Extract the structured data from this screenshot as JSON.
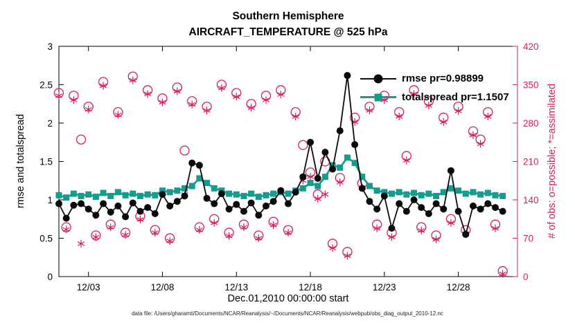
{
  "figure": {
    "title_line1": "Southern Hemisphere",
    "title_line2": "AIRCRAFT_TEMPERATURE @ 525 hPa",
    "footer": "data file: /Users/gharamti/Documents/NCAR/Reanalysis/~/Documents/NCAR/Reanalysis/webpub/obs_diag_output_2010-12.nc"
  },
  "colors": {
    "rmse": "#0a0a0a",
    "totalspread": "#169c8f",
    "obs": "#d81b60",
    "axis": "#000000"
  },
  "chart_data": {
    "type": "line",
    "title": [
      "Southern Hemisphere",
      "AIRCRAFT_TEMPERATURE @ 525 hPa"
    ],
    "xlabel": "Dec.01,2010 00:00:00 start",
    "ylabel_left": "rmse and totalspread",
    "ylabel_right": "# of obs: o=possible; *=assimilated",
    "xlim_days": [
      1,
      32
    ],
    "ylim_left": [
      0,
      3
    ],
    "ylim_right": [
      0,
      420
    ],
    "grid": false,
    "legend_position": "upper-right-inside",
    "xticks": {
      "days": [
        3,
        8,
        13,
        18,
        23,
        28
      ],
      "labels": [
        "12/03",
        "12/08",
        "12/13",
        "12/18",
        "12/23",
        "12/28"
      ]
    },
    "yticks_left": [
      0,
      0.5,
      1,
      1.5,
      2,
      2.5,
      3
    ],
    "yticks_left_labels": [
      "0",
      "0.5",
      "1",
      "1.5",
      "2",
      "2.5",
      "3"
    ],
    "yticks_right": [
      0,
      70,
      140,
      210,
      280,
      350,
      420
    ],
    "legend": [
      {
        "label": "rmse pr=0.98899",
        "series": "rmse"
      },
      {
        "label": "totalspread pr=1.1507",
        "series": "totalspread"
      }
    ],
    "x_days": [
      1,
      1.5,
      2,
      2.5,
      3,
      3.5,
      4,
      4.5,
      5,
      5.5,
      6,
      6.5,
      7,
      7.5,
      8,
      8.5,
      9,
      9.5,
      10,
      10.5,
      11,
      11.5,
      12,
      12.5,
      13,
      13.5,
      14,
      14.5,
      15,
      15.5,
      16,
      16.5,
      17,
      17.5,
      18,
      18.5,
      19,
      19.5,
      20,
      20.5,
      21,
      21.5,
      22,
      22.5,
      23,
      23.5,
      24,
      24.5,
      25,
      25.5,
      26,
      26.5,
      27,
      27.5,
      28,
      28.5,
      29,
      29.5,
      30,
      30.5,
      31
    ],
    "series": [
      {
        "name": "rmse",
        "axis": "left",
        "marker": "filled-circle",
        "values": [
          0.95,
          0.76,
          0.93,
          0.95,
          0.88,
          0.8,
          0.95,
          0.84,
          0.92,
          0.78,
          0.96,
          0.85,
          0.9,
          0.82,
          1.07,
          0.92,
          0.98,
          1.05,
          1.48,
          1.45,
          1.02,
          0.95,
          1.08,
          0.88,
          0.94,
          0.85,
          0.96,
          0.8,
          0.92,
          0.98,
          1.12,
          0.95,
          1.1,
          1.3,
          1.75,
          1.28,
          1.62,
          1.4,
          1.9,
          2.62,
          1.72,
          1.15,
          0.98,
          0.88,
          1.05,
          0.63,
          0.95,
          0.85,
          1.0,
          0.9,
          0.82,
          0.95,
          0.88,
          1.38,
          0.85,
          0.55,
          0.92,
          0.88,
          0.95,
          0.9,
          0.85
        ]
      },
      {
        "name": "totalspread",
        "axis": "left",
        "marker": "filled-square",
        "values": [
          1.06,
          1.03,
          1.08,
          1.05,
          1.07,
          1.04,
          1.09,
          1.05,
          1.1,
          1.06,
          1.08,
          1.05,
          1.07,
          1.06,
          1.12,
          1.1,
          1.12,
          1.15,
          1.18,
          1.28,
          1.22,
          1.15,
          1.12,
          1.08,
          1.07,
          1.05,
          1.08,
          1.04,
          1.06,
          1.08,
          1.1,
          1.08,
          1.12,
          1.15,
          1.22,
          1.18,
          1.3,
          1.45,
          1.42,
          1.55,
          1.48,
          1.3,
          1.18,
          1.12,
          1.1,
          1.08,
          1.1,
          1.07,
          1.09,
          1.06,
          1.08,
          1.05,
          1.1,
          1.15,
          1.12,
          1.08,
          1.1,
          1.07,
          1.09,
          1.06,
          1.05
        ]
      },
      {
        "name": "possible_obs",
        "axis": "right",
        "marker": "open-circle",
        "values": [
          335,
          90,
          330,
          250,
          310,
          75,
          355,
          95,
          300,
          80,
          365,
          110,
          340,
          85,
          325,
          70,
          345,
          230,
          320,
          90,
          310,
          105,
          350,
          80,
          335,
          95,
          315,
          75,
          330,
          100,
          340,
          85,
          300,
          240,
          190,
          150,
          210,
          60,
          180,
          45,
          290,
          170,
          310,
          95,
          330,
          80,
          300,
          220,
          340,
          90,
          320,
          75,
          290,
          105,
          310,
          85,
          265,
          250,
          300,
          95,
          10
        ]
      },
      {
        "name": "assimilated_obs",
        "axis": "right",
        "marker": "asterisk",
        "values": [
          330,
          86,
          322,
          60,
          305,
          72,
          348,
          90,
          295,
          76,
          358,
          104,
          333,
          80,
          318,
          65,
          338,
          150,
          314,
          85,
          303,
          98,
          344,
          74,
          328,
          90,
          308,
          70,
          322,
          94,
          332,
          80,
          292,
          175,
          182,
          142,
          150,
          52,
          172,
          38,
          282,
          162,
          303,
          88,
          322,
          72,
          292,
          212,
          333,
          84,
          312,
          68,
          282,
          98,
          302,
          78,
          258,
          242,
          292,
          88,
          5
        ]
      }
    ]
  }
}
